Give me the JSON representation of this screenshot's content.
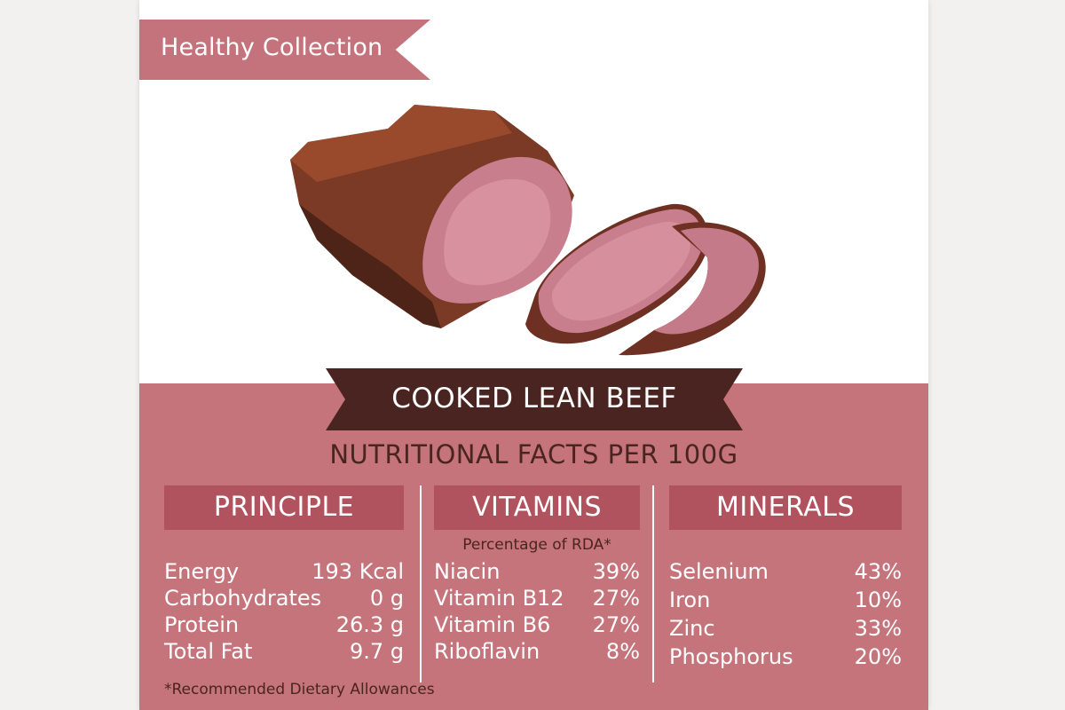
{
  "ribbon": {
    "label": "Healthy Collection"
  },
  "title": "COOKED LEAN BEEF",
  "subtitle": "NUTRITIONAL FACTS PER 100G",
  "columns": {
    "principle": {
      "heading": "PRINCIPLE",
      "rows": [
        {
          "label": "Energy",
          "value": "193 Kcal"
        },
        {
          "label": "Carbohydrates",
          "value": "0 g"
        },
        {
          "label": "Protein",
          "value": "26.3 g"
        },
        {
          "label": "Total Fat",
          "value": "9.7 g"
        }
      ]
    },
    "vitamins": {
      "heading": "VITAMINS",
      "note": "Percentage of RDA*",
      "rows": [
        {
          "label": "Niacin",
          "value": "39%"
        },
        {
          "label": "Vitamin B12",
          "value": "27%"
        },
        {
          "label": "Vitamin B6",
          "value": "27%"
        },
        {
          "label": "Riboflavin",
          "value": "8%"
        }
      ]
    },
    "minerals": {
      "heading": "MINERALS",
      "rows": [
        {
          "label": "Selenium",
          "value": "43%"
        },
        {
          "label": "Iron",
          "value": "10%"
        },
        {
          "label": "Zinc",
          "value": "33%"
        },
        {
          "label": "Phosphorus",
          "value": "20%"
        }
      ]
    }
  },
  "footnote": "*Recommended Dietary Allowances",
  "colors": {
    "page_bg": "#f2f1ef",
    "pink_panel": "#c5747c",
    "header_bar": "#b0535e",
    "dark_brown": "#4a2420",
    "ribbon": "#c4727b"
  },
  "icons": {
    "illustration": "cooked-beef-illustration"
  }
}
